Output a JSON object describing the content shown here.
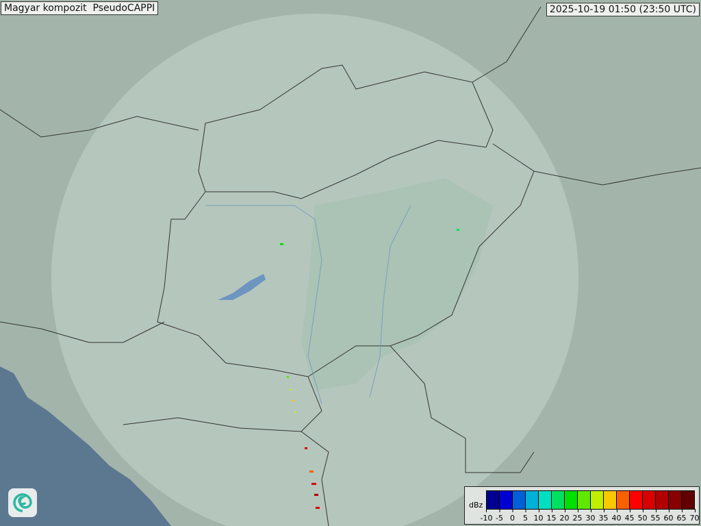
{
  "header": {
    "title": "Magyar kompozit  PseudoCAPPI",
    "timestamp": "2025-10-19 01:50 (23:50 UTC)"
  },
  "legend": {
    "unit": "dBz",
    "ticks": [
      "-10",
      "-5",
      "0",
      "5",
      "10",
      "15",
      "20",
      "25",
      "30",
      "35",
      "40",
      "45",
      "50",
      "55",
      "60",
      "65",
      "70"
    ],
    "colors": [
      "#000090",
      "#0000d0",
      "#0060d8",
      "#00b0d8",
      "#00e0c0",
      "#00e060",
      "#00e000",
      "#60e800",
      "#c0f000",
      "#f8c800",
      "#f86000",
      "#ff0000",
      "#d80000",
      "#b00000",
      "#880000",
      "#600000"
    ]
  },
  "map": {
    "land_color": "#a3b5aa",
    "radar_coverage_color": "#c4d3cb",
    "lowland_color": "#a6c2b2",
    "sea_color": "#5c7891",
    "border_color": "#333333",
    "river_color": "#6d95c0"
  },
  "logo": {
    "icon": "swirl-logo-icon"
  }
}
